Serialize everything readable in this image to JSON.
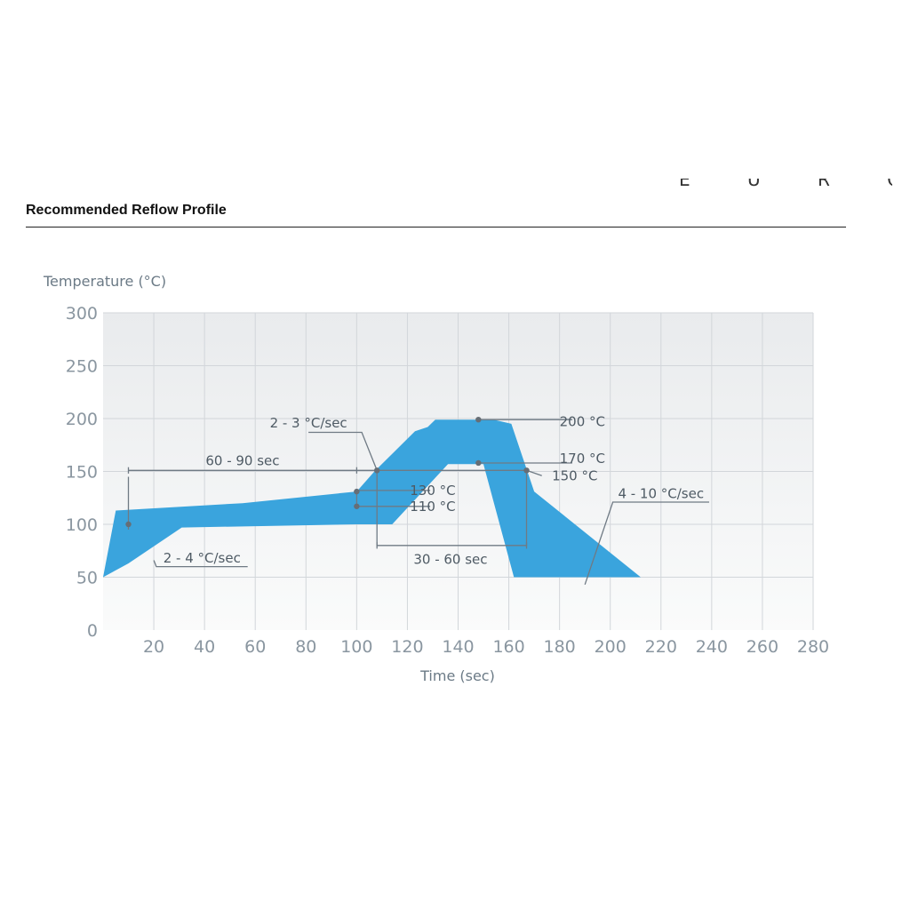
{
  "page": {
    "title": "Recommended Reflow Profile",
    "cut_text": "E U R O P E"
  },
  "chart_data": {
    "type": "area",
    "ylabel": "Temperature (°C)",
    "xlabel": "Time (sec)",
    "xlim": [
      0,
      280
    ],
    "ylim": [
      0,
      300
    ],
    "x_ticks": [
      20,
      40,
      60,
      80,
      100,
      120,
      140,
      160,
      180,
      200,
      220,
      240,
      260,
      280
    ],
    "y_ticks": [
      0,
      50,
      100,
      150,
      200,
      250,
      300
    ],
    "grid": true,
    "colors": {
      "band": "#3aa4dd",
      "annotation": "#6f7a84",
      "grid": "#d2d6da"
    },
    "band_upper": [
      {
        "x": 0,
        "y": 50
      },
      {
        "x": 5,
        "y": 113
      },
      {
        "x": 55,
        "y": 120
      },
      {
        "x": 100,
        "y": 131
      },
      {
        "x": 107,
        "y": 150
      },
      {
        "x": 123,
        "y": 188
      },
      {
        "x": 128,
        "y": 192
      },
      {
        "x": 131,
        "y": 199
      },
      {
        "x": 154,
        "y": 199
      },
      {
        "x": 161,
        "y": 195
      },
      {
        "x": 170,
        "y": 131
      },
      {
        "x": 212,
        "y": 50
      }
    ],
    "band_lower": [
      {
        "x": 162,
        "y": 50
      },
      {
        "x": 150,
        "y": 157
      },
      {
        "x": 136,
        "y": 157
      },
      {
        "x": 114,
        "y": 100
      },
      {
        "x": 100,
        "y": 100
      },
      {
        "x": 31,
        "y": 97
      },
      {
        "x": 10,
        "y": 63
      },
      {
        "x": 0,
        "y": 50
      }
    ],
    "points": [
      {
        "x": 10,
        "y": 100
      },
      {
        "x": 100,
        "y": 131
      },
      {
        "x": 100,
        "y": 117
      },
      {
        "x": 108,
        "y": 151
      },
      {
        "x": 148,
        "y": 199
      },
      {
        "x": 148,
        "y": 158
      },
      {
        "x": 167,
        "y": 151
      }
    ],
    "annotations": [
      {
        "text": "60 - 90 sec",
        "x": 55,
        "y": 160
      },
      {
        "text": "2 - 4 °C/sec",
        "x": 39,
        "y": 68
      },
      {
        "text": "2 - 3 °C/sec",
        "x": 81,
        "y": 196
      },
      {
        "text": "130 °C",
        "x": 130,
        "y": 132
      },
      {
        "text": "110 °C",
        "x": 130,
        "y": 117
      },
      {
        "text": "30 - 60 sec",
        "x": 137,
        "y": 67
      },
      {
        "text": "200 °C",
        "x": 189,
        "y": 197
      },
      {
        "text": "170 °C",
        "x": 189,
        "y": 162
      },
      {
        "text": "150 °C",
        "x": 186,
        "y": 146
      },
      {
        "text": "4 - 10 °C/sec",
        "x": 220,
        "y": 129
      }
    ]
  }
}
